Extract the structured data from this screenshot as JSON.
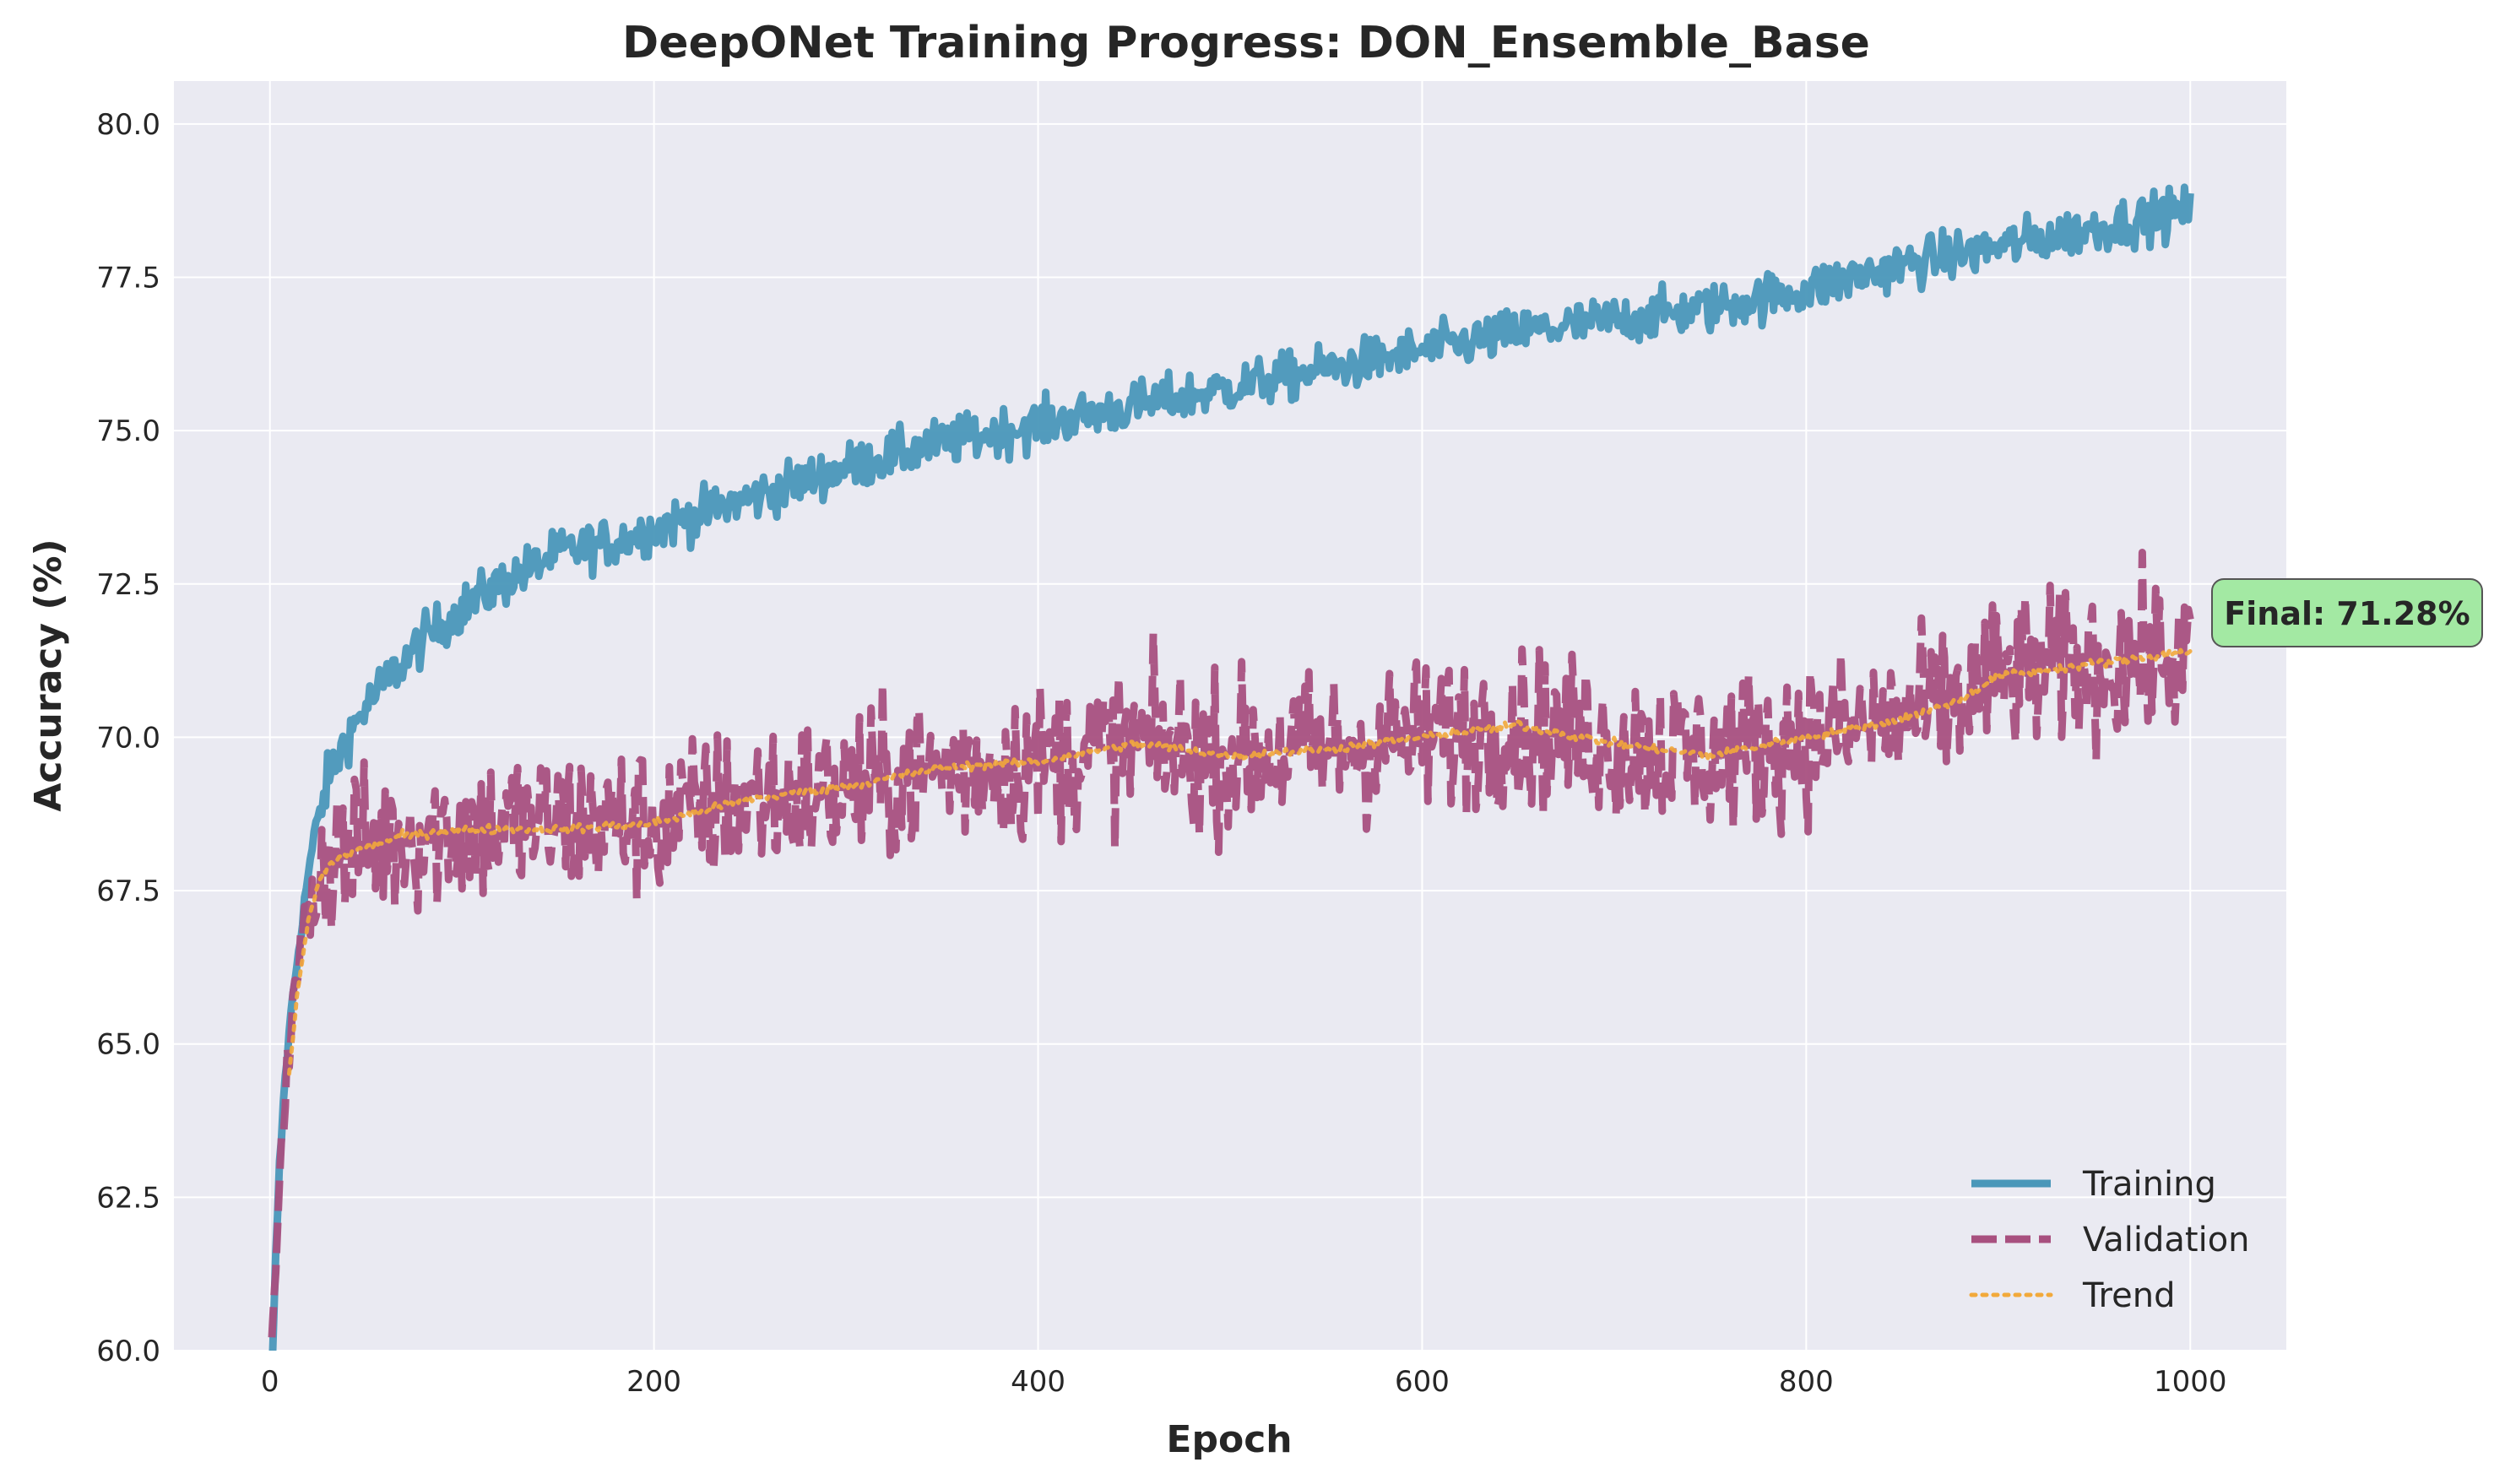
{
  "chart_data": {
    "type": "line",
    "title": "DeepONet Training Progress: DON_Ensemble_Base",
    "xlabel": "Epoch",
    "ylabel": "Accuracy (%)",
    "xlim": [
      -50,
      1050
    ],
    "ylim": [
      60.0,
      80.7
    ],
    "xticks": [
      0,
      200,
      400,
      600,
      800,
      1000
    ],
    "xtick_labels": [
      "0",
      "200",
      "400",
      "600",
      "800",
      "1000"
    ],
    "yticks": [
      60.0,
      62.5,
      65.0,
      67.5,
      70.0,
      72.5,
      75.0,
      77.5,
      80.0
    ],
    "ytick_labels": [
      "60.0",
      "62.5",
      "65.0",
      "67.5",
      "70.0",
      "72.5",
      "75.0",
      "77.5",
      "80.0"
    ],
    "grid": true,
    "legend_position": "lower-right",
    "epochs_shown": 1000,
    "series": [
      {
        "name": "Training",
        "color": "#4a97b9",
        "style": "solid",
        "noise": 0.28,
        "x": [
          1,
          3,
          5,
          8,
          12,
          16,
          20,
          25,
          30,
          40,
          50,
          60,
          80,
          100,
          120,
          150,
          180,
          200,
          250,
          300,
          350,
          400,
          450,
          500,
          550,
          600,
          650,
          700,
          750,
          800,
          850,
          900,
          950,
          1000
        ],
        "values": [
          59.5,
          61.5,
          63.0,
          64.5,
          65.8,
          66.8,
          67.8,
          68.6,
          69.3,
          70.0,
          70.5,
          70.9,
          71.6,
          72.1,
          72.5,
          73.0,
          73.2,
          73.4,
          73.9,
          74.4,
          74.8,
          75.1,
          75.4,
          75.7,
          76.0,
          76.3,
          76.6,
          76.8,
          77.0,
          77.3,
          77.7,
          78.0,
          78.3,
          78.6
        ]
      },
      {
        "name": "Validation",
        "color": "#a8507f",
        "style": "dashed",
        "noise": 0.9,
        "x": [
          1,
          3,
          5,
          8,
          12,
          16,
          20,
          25,
          30,
          40,
          50,
          70,
          100,
          150,
          200,
          250,
          300,
          350,
          400,
          450,
          500,
          550,
          600,
          650,
          700,
          750,
          800,
          850,
          880,
          900,
          950,
          1000
        ],
        "values": [
          59.8,
          61.5,
          63.0,
          64.3,
          65.5,
          66.5,
          67.3,
          67.8,
          68.0,
          68.2,
          68.2,
          68.4,
          68.5,
          68.6,
          68.6,
          69.0,
          69.1,
          69.5,
          69.6,
          69.9,
          69.7,
          69.8,
          70.0,
          70.2,
          69.9,
          69.7,
          70.0,
          70.3,
          70.6,
          71.0,
          71.2,
          71.3
        ]
      },
      {
        "name": "Trend",
        "color": "#f2a93b",
        "style": "dotted",
        "noise": 0.05,
        "x": [
          10,
          15,
          20,
          25,
          30,
          40,
          50,
          70,
          100,
          150,
          200,
          250,
          300,
          350,
          400,
          450,
          500,
          550,
          600,
          650,
          700,
          750,
          800,
          850,
          880,
          900,
          950,
          1000
        ],
        "values": [
          64.5,
          66.0,
          67.0,
          67.6,
          67.9,
          68.1,
          68.2,
          68.4,
          68.5,
          68.5,
          68.6,
          69.0,
          69.2,
          69.5,
          69.6,
          69.9,
          69.7,
          69.8,
          70.0,
          70.2,
          69.9,
          69.7,
          70.0,
          70.3,
          70.6,
          71.0,
          71.2,
          71.4
        ]
      }
    ],
    "annotation": {
      "text": "Final: 71.28%",
      "box_color": "#a3e9a3"
    }
  }
}
